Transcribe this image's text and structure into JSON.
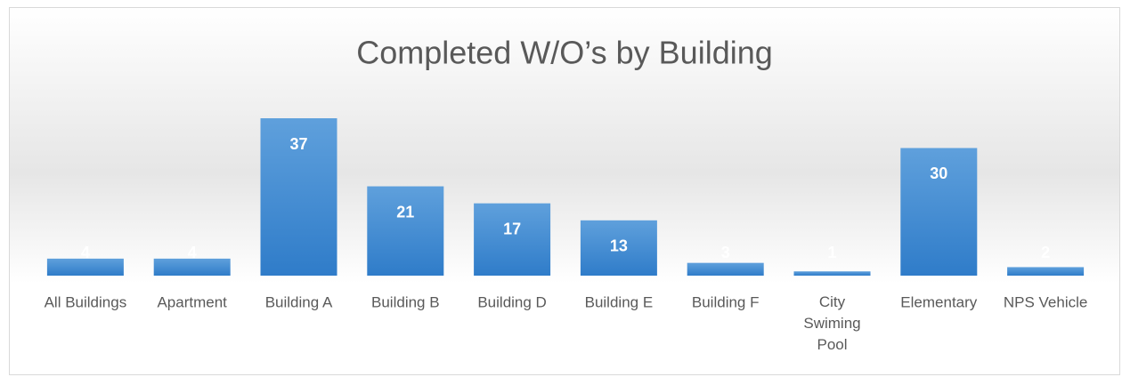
{
  "chart_data": {
    "type": "bar",
    "title": "Completed W/O’s by Building",
    "categories": [
      "All Buildings",
      "Apartment",
      "Building A",
      "Building B",
      "Building D",
      "Building E",
      "Building F",
      "City Swiming Pool",
      "Elementary",
      "NPS Vehicle"
    ],
    "values": [
      4,
      4,
      37,
      21,
      17,
      13,
      3,
      1,
      30,
      2
    ],
    "color": "#4a8fd4"
  }
}
